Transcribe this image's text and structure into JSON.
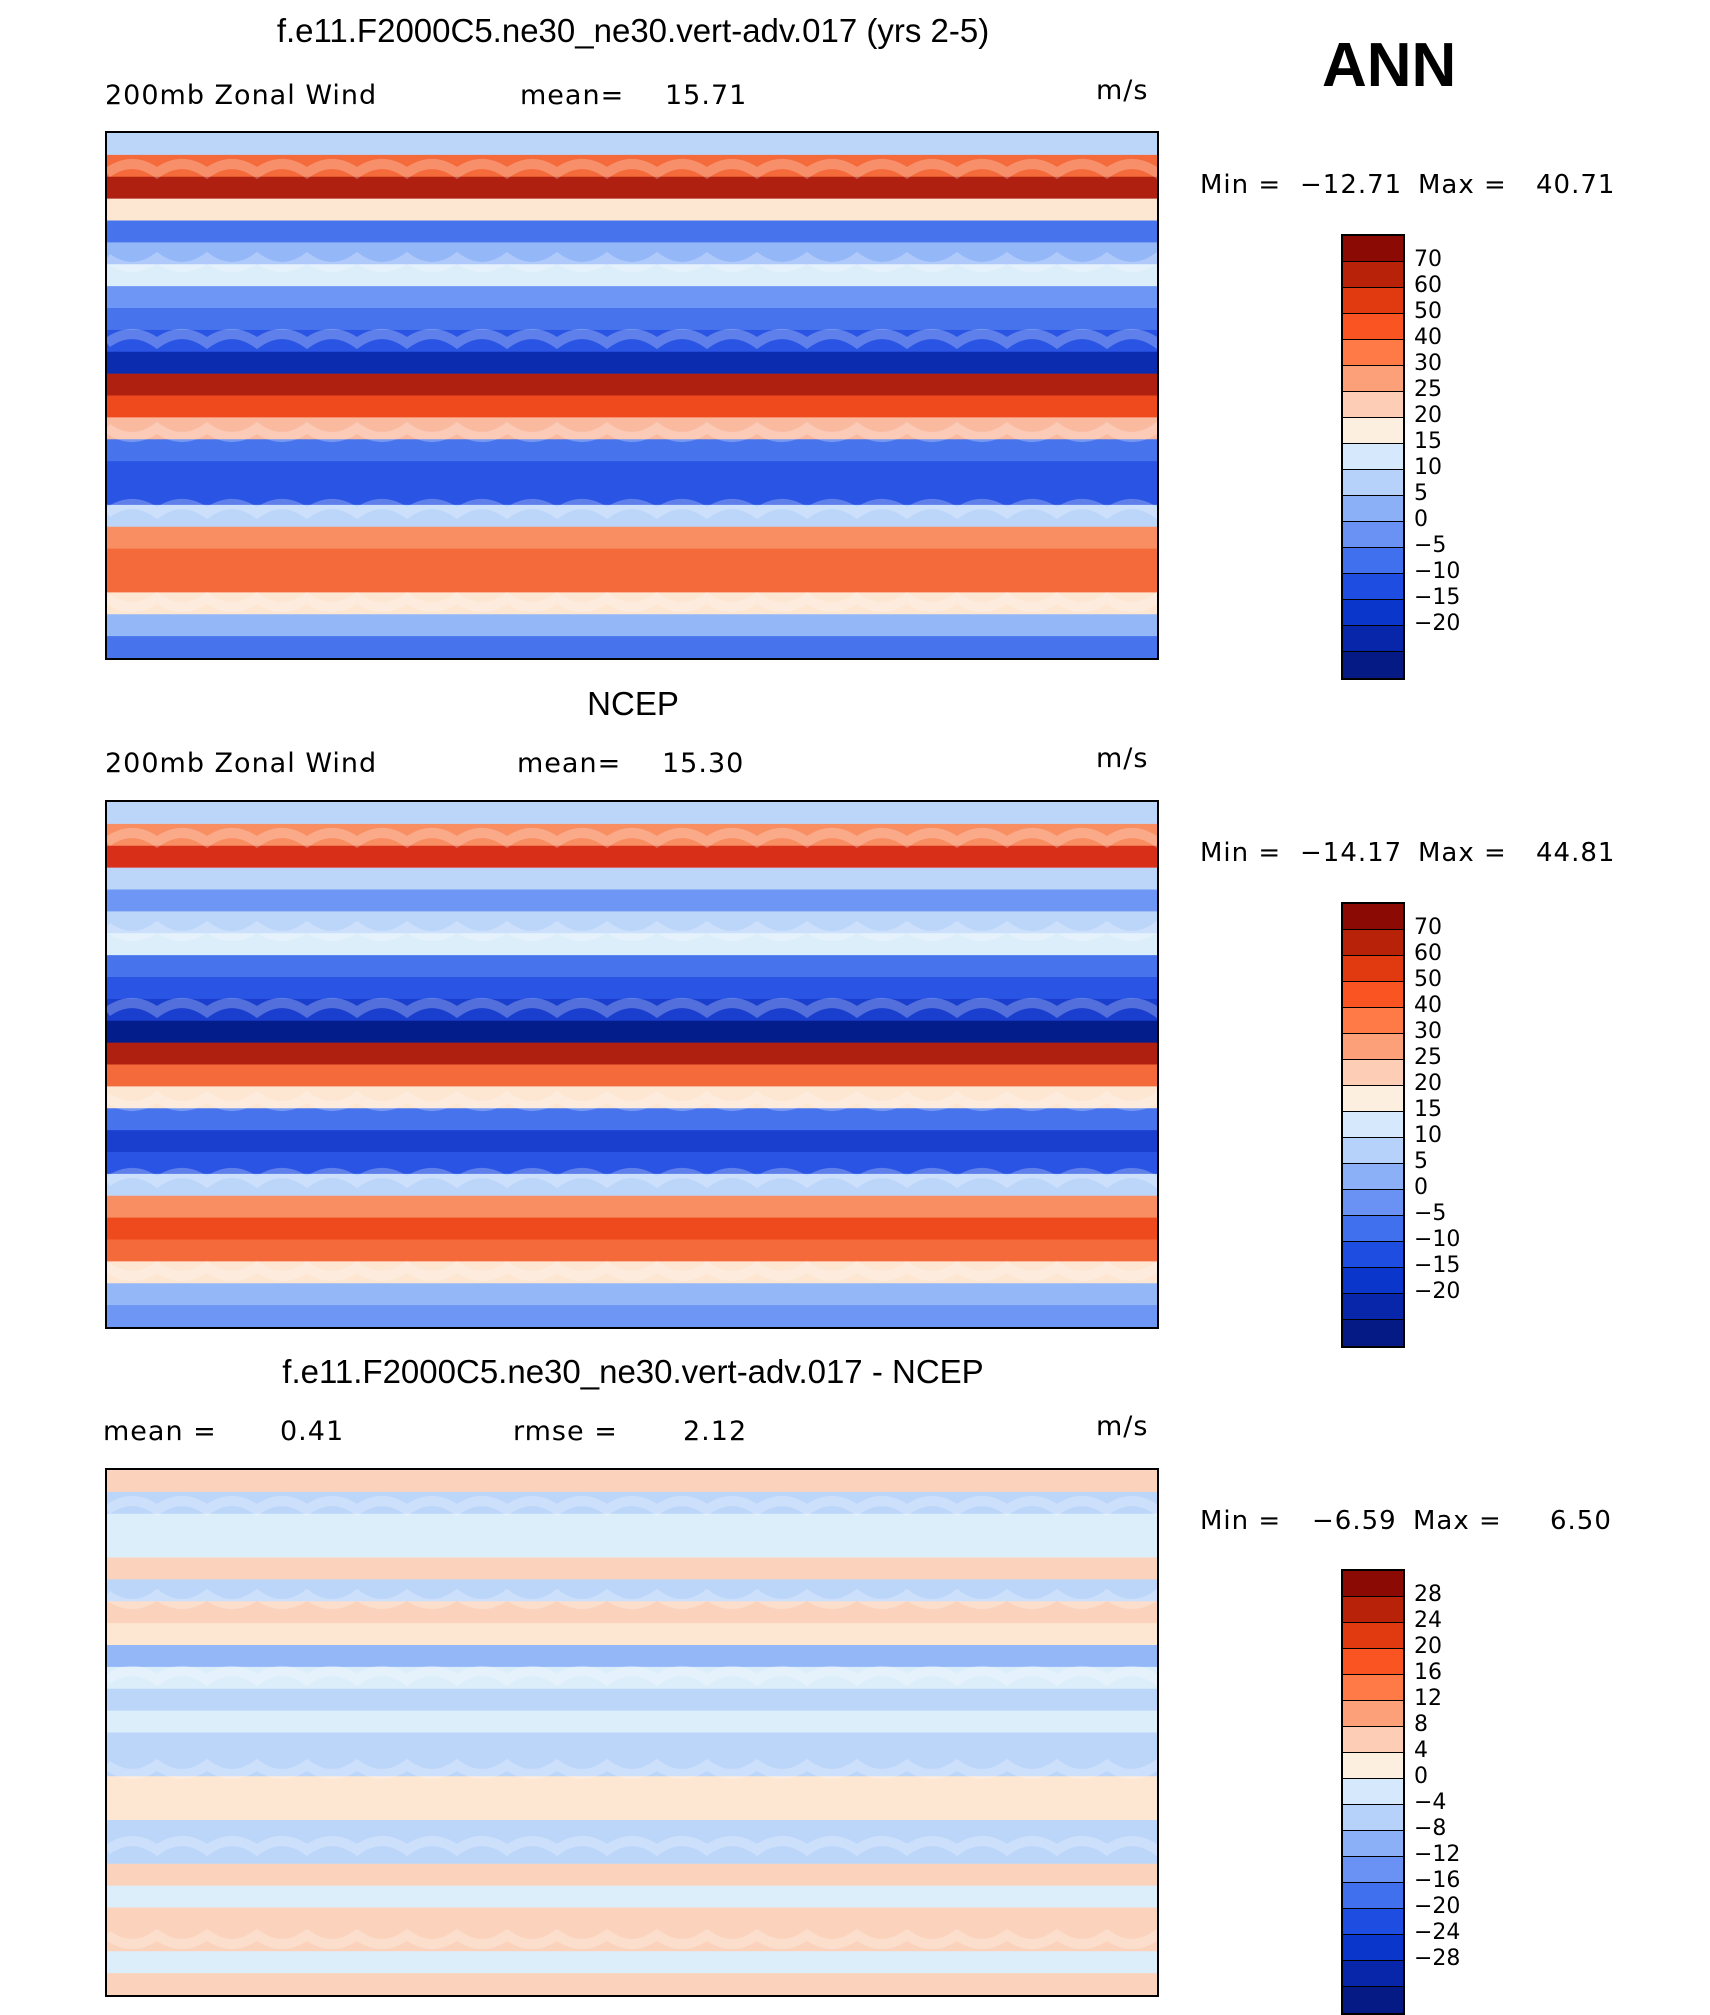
{
  "header": {
    "season": "ANN"
  },
  "panels": [
    {
      "title": "f.e11.F2000C5.ne30_ne30.vert-adv.017 (yrs 2-5)",
      "left_label": "200mb Zonal Wind",
      "mid_label": "mean=",
      "mid_value": "15.71",
      "units": "m/s",
      "min_label": "Min =",
      "min_value": "−12.71",
      "max_label": "Max =",
      "max_value": "40.71",
      "colors": [
        "#b02010",
        "#d83018",
        "#ef4a1e",
        "#f56a3a",
        "#f88e62",
        "#fabaa0",
        "#fde6d2",
        "#ddeefb",
        "#bcd6fa",
        "#94b7f8",
        "#6e96f4",
        "#4774ed",
        "#2a55e4",
        "#1a3fcf",
        "#0c2caf",
        "#031d8a"
      ],
      "bands": [
        40,
        35,
        32,
        22,
        27,
        25,
        23,
        26,
        27,
        28,
        30,
        32,
        34,
        37,
        43,
        44,
        44,
        40,
        36,
        35,
        35,
        38,
        41,
        43
      ],
      "legend": {
        "colors": [
          "#8b0a04",
          "#b82208",
          "#e23a10",
          "#fa5422",
          "#ff7a46",
          "#fca07a",
          "#fdcdb6",
          "#fdefdf",
          "#d6e8fb",
          "#b6d1fa",
          "#8cb0f7",
          "#6a92f4",
          "#4070ee",
          "#1e4de2",
          "#0b36cc",
          "#0826a9",
          "#061a86"
        ],
        "labels": [
          "70",
          "60",
          "50",
          "40",
          "30",
          "25",
          "20",
          "15",
          "10",
          "5",
          "0",
          "−5",
          "−10",
          "−15",
          "−20"
        ]
      }
    },
    {
      "title": "NCEP",
      "left_label": "200mb Zonal Wind",
      "mid_label": "mean=",
      "mid_value": "15.30",
      "units": "m/s",
      "min_label": "Min =",
      "min_value": "−14.17",
      "max_label": "Max =",
      "max_value": "44.81",
      "colors": [
        "#b02010",
        "#d83018",
        "#ef4a1e",
        "#f56a3a",
        "#f88e62",
        "#fabaa0",
        "#fde6d2",
        "#ddeefb",
        "#bcd6fa",
        "#94b7f8",
        "#6e96f4",
        "#4774ed",
        "#2a55e4",
        "#1a3fcf",
        "#0c2caf",
        "#031d8a"
      ],
      "bands": [
        40,
        36,
        33,
        24,
        26,
        24,
        23,
        27,
        28,
        29,
        31,
        32,
        35,
        38,
        43,
        45,
        44,
        40,
        36,
        34,
        35,
        38,
        41,
        42
      ],
      "legend": {
        "colors": [
          "#8b0a04",
          "#b82208",
          "#e23a10",
          "#fa5422",
          "#ff7a46",
          "#fca07a",
          "#fdcdb6",
          "#fdefdf",
          "#d6e8fb",
          "#b6d1fa",
          "#8cb0f7",
          "#6a92f4",
          "#4070ee",
          "#1e4de2",
          "#0b36cc",
          "#0826a9",
          "#061a86"
        ],
        "labels": [
          "70",
          "60",
          "50",
          "40",
          "30",
          "25",
          "20",
          "15",
          "10",
          "5",
          "0",
          "−5",
          "−10",
          "−15",
          "−20"
        ]
      }
    },
    {
      "title": "f.e11.F2000C5.ne30_ne30.vert-adv.017 - NCEP",
      "left_label": "mean =",
      "left_value": "0.41",
      "mid_label": "rmse =",
      "mid_value": "2.12",
      "units": "m/s",
      "min_label": "Min =",
      "min_value": "−6.59",
      "max_label": "Max =",
      "max_value": "6.50",
      "colors": [
        "#fde6d2",
        "#fbd3bd",
        "#ddeefb",
        "#bcd6fa",
        "#94b7f8"
      ],
      "bands": [
        31,
        23,
        42,
        32,
        21,
        38,
        46,
        50,
        44,
        37,
        38,
        42,
        38,
        33,
        40,
        45,
        33,
        28,
        46,
        37,
        41,
        36,
        47,
        41
      ],
      "legend": {
        "colors": [
          "#8b0a04",
          "#b82208",
          "#e23a10",
          "#fa5422",
          "#ff7a46",
          "#fca07a",
          "#fdcdb6",
          "#fdefdf",
          "#d6e8fb",
          "#b6d1fa",
          "#8cb0f7",
          "#6a92f4",
          "#4070ee",
          "#1e4de2",
          "#0b36cc",
          "#0826a9",
          "#061a86"
        ],
        "labels": [
          "28",
          "24",
          "20",
          "16",
          "12",
          "8",
          "4",
          "0",
          "−4",
          "−8",
          "−12",
          "−16",
          "−20",
          "−24",
          "−28"
        ]
      }
    }
  ]
}
